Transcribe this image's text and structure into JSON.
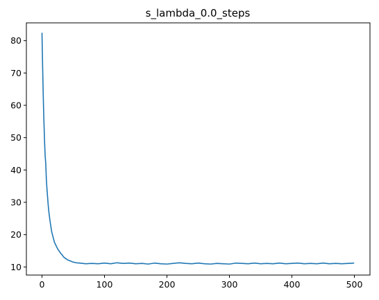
{
  "chart_data": {
    "type": "line",
    "title": "s_lambda_0.0_steps",
    "xlabel": "",
    "ylabel": "",
    "xlim": [
      -25,
      525
    ],
    "ylim": [
      7.5,
      85.5
    ],
    "x_ticks": [
      0,
      100,
      200,
      300,
      400,
      500
    ],
    "y_ticks": [
      10,
      20,
      30,
      40,
      50,
      60,
      70,
      80
    ],
    "grid": false,
    "legend": "none",
    "series": [
      {
        "color": "#1f77b4",
        "x": [
          0,
          1,
          2,
          3,
          4,
          5,
          6,
          7,
          8,
          9,
          10,
          11,
          12,
          13,
          14,
          15,
          16,
          17,
          18,
          19,
          20,
          22,
          24,
          26,
          28,
          30,
          32,
          35,
          38,
          41,
          45,
          50,
          55,
          60,
          65,
          70,
          80,
          90,
          100,
          110,
          120,
          130,
          140,
          150,
          160,
          170,
          180,
          190,
          200,
          210,
          220,
          230,
          240,
          250,
          260,
          270,
          280,
          290,
          300,
          310,
          320,
          330,
          340,
          350,
          360,
          370,
          380,
          390,
          400,
          410,
          420,
          430,
          440,
          450,
          460,
          470,
          480,
          490,
          499
        ],
        "y": [
          82.3,
          72.0,
          63.0,
          55.5,
          49.5,
          44.5,
          42.0,
          37.0,
          34.0,
          31.5,
          29.0,
          27.0,
          25.5,
          24.0,
          22.8,
          21.5,
          20.5,
          19.8,
          19.0,
          18.3,
          17.6,
          16.8,
          16.0,
          15.3,
          14.8,
          14.2,
          13.8,
          13.0,
          12.6,
          12.2,
          11.9,
          11.5,
          11.3,
          11.2,
          11.1,
          11.0,
          11.1,
          11.0,
          11.2,
          11.0,
          11.3,
          11.1,
          11.2,
          11.0,
          11.1,
          10.9,
          11.2,
          11.0,
          10.9,
          11.1,
          11.3,
          11.1,
          11.0,
          11.2,
          11.0,
          10.9,
          11.1,
          11.0,
          10.9,
          11.2,
          11.1,
          11.0,
          11.2,
          11.0,
          11.1,
          11.0,
          11.2,
          11.0,
          11.1,
          11.2,
          11.0,
          11.1,
          11.0,
          11.2,
          11.0,
          11.1,
          11.0,
          11.1,
          11.2
        ]
      }
    ]
  }
}
